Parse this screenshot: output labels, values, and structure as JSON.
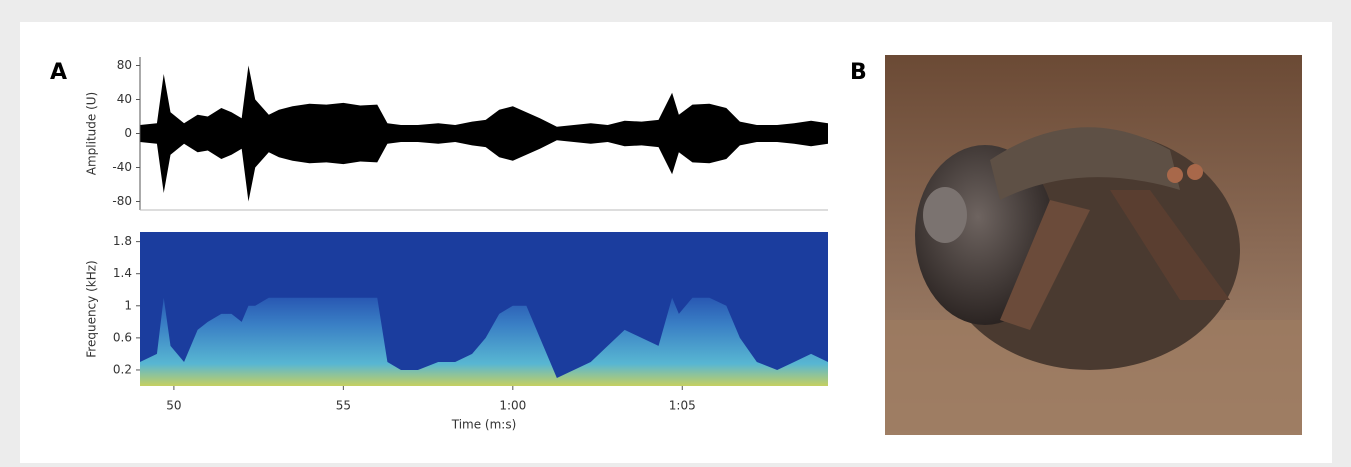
{
  "panels": {
    "a": "A",
    "b": "B"
  },
  "chart_data": [
    {
      "type": "envelope",
      "ylabel": "Amplitude (U)",
      "color": "#000000",
      "x": [
        49.0,
        49.5,
        49.7,
        49.9,
        50.3,
        50.7,
        51.0,
        51.4,
        51.7,
        52.0,
        52.2,
        52.4,
        52.8,
        53.1,
        53.5,
        54.0,
        54.5,
        55.0,
        55.5,
        56.0,
        56.3,
        56.7,
        57.2,
        57.8,
        58.3,
        58.8,
        59.2,
        59.6,
        60.0,
        60.4,
        60.8,
        61.3,
        61.8,
        62.3,
        62.8,
        63.3,
        63.8,
        64.3,
        64.7,
        64.9,
        65.3,
        65.8,
        66.3,
        66.7,
        67.2,
        67.8,
        68.3,
        68.8,
        69.3
      ],
      "values": [
        10,
        12,
        70,
        25,
        12,
        22,
        20,
        30,
        25,
        18,
        80,
        40,
        22,
        28,
        32,
        35,
        34,
        36,
        33,
        34,
        12,
        10,
        10,
        12,
        10,
        14,
        16,
        28,
        32,
        25,
        18,
        8,
        10,
        12,
        10,
        15,
        14,
        16,
        48,
        22,
        34,
        35,
        30,
        14,
        10,
        10,
        12,
        15,
        12
      ],
      "xlim": [
        49.0,
        69.3
      ],
      "ylim": [
        -90,
        90
      ],
      "yticks": [
        80,
        40,
        0,
        -40,
        -80
      ]
    },
    {
      "type": "spectrogram",
      "ylabel": "Frequency (kHz)",
      "xlabel": "Time (m:s)",
      "color": "#1b3d9e",
      "x": [
        49.0,
        49.5,
        49.7,
        49.9,
        50.3,
        50.7,
        51.0,
        51.4,
        51.7,
        52.0,
        52.2,
        52.4,
        52.8,
        53.1,
        53.5,
        54.0,
        54.5,
        55.0,
        55.5,
        56.0,
        56.3,
        56.7,
        57.2,
        57.8,
        58.3,
        58.8,
        59.2,
        59.6,
        60.0,
        60.4,
        60.8,
        61.3,
        61.8,
        62.3,
        62.8,
        63.3,
        63.8,
        64.3,
        64.7,
        64.9,
        65.3,
        65.8,
        66.3,
        66.7,
        67.2,
        67.8,
        68.3,
        68.8,
        69.3
      ],
      "values": [
        0.3,
        0.4,
        1.1,
        0.5,
        0.3,
        0.7,
        0.8,
        0.9,
        0.9,
        0.8,
        1.0,
        1.0,
        1.1,
        1.1,
        1.1,
        1.1,
        1.1,
        1.1,
        1.1,
        1.1,
        0.3,
        0.2,
        0.2,
        0.3,
        0.3,
        0.4,
        0.6,
        0.9,
        1.0,
        1.0,
        0.6,
        0.1,
        0.2,
        0.3,
        0.5,
        0.7,
        0.6,
        0.5,
        1.1,
        0.9,
        1.1,
        1.1,
        1.0,
        0.6,
        0.3,
        0.2,
        0.3,
        0.4,
        0.3
      ],
      "xlim": [
        49.0,
        69.3
      ],
      "xticks": [
        50,
        55,
        {
          "value": 60,
          "label": "1:00"
        },
        {
          "value": 65,
          "label": "1:05"
        }
      ],
      "ylim": [
        0,
        1.92
      ],
      "yticks": [
        1.8,
        1.4,
        1.0,
        0.6,
        0.2
      ]
    }
  ]
}
